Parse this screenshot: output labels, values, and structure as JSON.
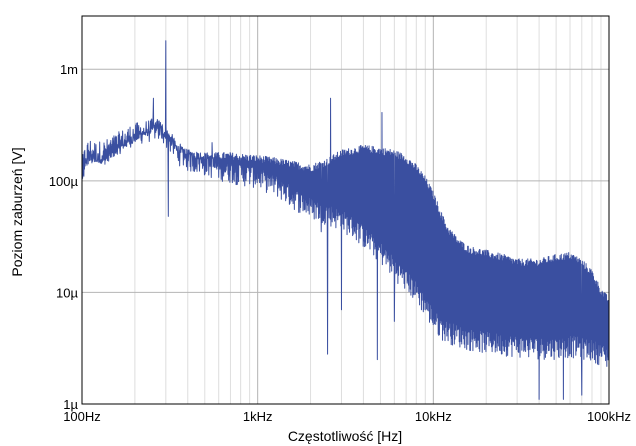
{
  "chart_data": {
    "type": "line",
    "title": "",
    "xlabel": "Częstotliwość [Hz]",
    "ylabel": "Poziom zaburzeń [V]",
    "x_scale": "log",
    "y_scale": "log",
    "xlim": [
      100,
      100000
    ],
    "ylim": [
      1e-06,
      0.003
    ],
    "grid": true,
    "legend": "none",
    "x_ticks": [
      {
        "value": 100,
        "label": "100Hz"
      },
      {
        "value": 1000,
        "label": "1kHz"
      },
      {
        "value": 10000,
        "label": "10kHz"
      },
      {
        "value": 100000,
        "label": "100kHz"
      }
    ],
    "y_ticks": [
      {
        "value": 1e-06,
        "label": "1µ"
      },
      {
        "value": 1e-05,
        "label": "10µ"
      },
      {
        "value": 0.0001,
        "label": "100µ"
      },
      {
        "value": 0.001,
        "label": "1m"
      }
    ],
    "series": [
      {
        "color": "#3a4fa0",
        "envelope": {
          "x": [
            100,
            105,
            110,
            120,
            135,
            150,
            170,
            190,
            210,
            240,
            260,
            280,
            300,
            320,
            350,
            400,
            500,
            600,
            700,
            800,
            1000,
            1300,
            1600,
            2000,
            2500,
            3000,
            3500,
            4000,
            5000,
            6000,
            7000,
            8000,
            9000,
            10000,
            11000,
            12000,
            14000,
            16000,
            20000,
            25000,
            30000,
            40000,
            50000,
            60000,
            70000,
            80000,
            90000,
            100000
          ],
          "upper": [
            0.000105,
            0.00015,
            0.00017,
            0.00016,
            0.000165,
            0.00019,
            0.00022,
            0.00025,
            0.00027,
            0.0003,
            0.00032,
            0.00031,
            0.00029,
            0.00026,
            0.00021,
            0.00019,
            0.00018,
            0.00018,
            0.00018,
            0.000175,
            0.00017,
            0.00016,
            0.00015,
            0.00014,
            0.00016,
            0.00019,
            0.0002,
            0.00021,
            0.0002,
            0.00019,
            0.00017,
            0.00014,
            0.00011,
            8e-05,
            5.5e-05,
            4e-05,
            3e-05,
            2.6e-05,
            2.4e-05,
            2.2e-05,
            2e-05,
            2e-05,
            2.2e-05,
            2.3e-05,
            2e-05,
            1.6e-05,
            1.1e-05,
            9e-06
          ],
          "lower": [
            0.0001,
            0.000135,
            0.00015,
            0.00014,
            0.000145,
            0.00016,
            0.00018,
            0.0002,
            0.00021,
            0.00022,
            0.00023,
            0.00022,
            0.0002,
            0.00017,
            0.00014,
            0.00012,
            0.00011,
            0.0001,
            9.5e-05,
            9e-05,
            8.5e-05,
            7e-05,
            5.5e-05,
            4.5e-05,
            4e-05,
            3.5e-05,
            3e-05,
            2.5e-05,
            1.8e-05,
            1.3e-05,
            1e-05,
            8e-06,
            6e-06,
            4.5e-06,
            3.8e-06,
            3.5e-06,
            3.2e-06,
            3e-06,
            2.8e-06,
            2.7e-06,
            2.6e-06,
            2.5e-06,
            2.5e-06,
            2.6e-06,
            2.5e-06,
            2.4e-06,
            2.2e-06,
            2e-06
          ]
        },
        "peaks": [
          {
            "x": 255,
            "y": 0.00055
          },
          {
            "x": 300,
            "y": 0.0018
          },
          {
            "x": 310,
            "y": 4.8e-05
          },
          {
            "x": 550,
            "y": 0.00022
          },
          {
            "x": 2300,
            "y": 3.5e-05
          },
          {
            "x": 2500,
            "y": 2.8e-06
          },
          {
            "x": 2600,
            "y": 0.00055
          },
          {
            "x": 3000,
            "y": 7e-06
          },
          {
            "x": 4800,
            "y": 2.5e-06
          },
          {
            "x": 5100,
            "y": 0.00041
          },
          {
            "x": 6000,
            "y": 5.5e-06
          },
          {
            "x": 40000,
            "y": 1.1e-06
          },
          {
            "x": 55000,
            "y": 1.1e-06
          },
          {
            "x": 70000,
            "y": 1.2e-06
          }
        ]
      }
    ]
  }
}
